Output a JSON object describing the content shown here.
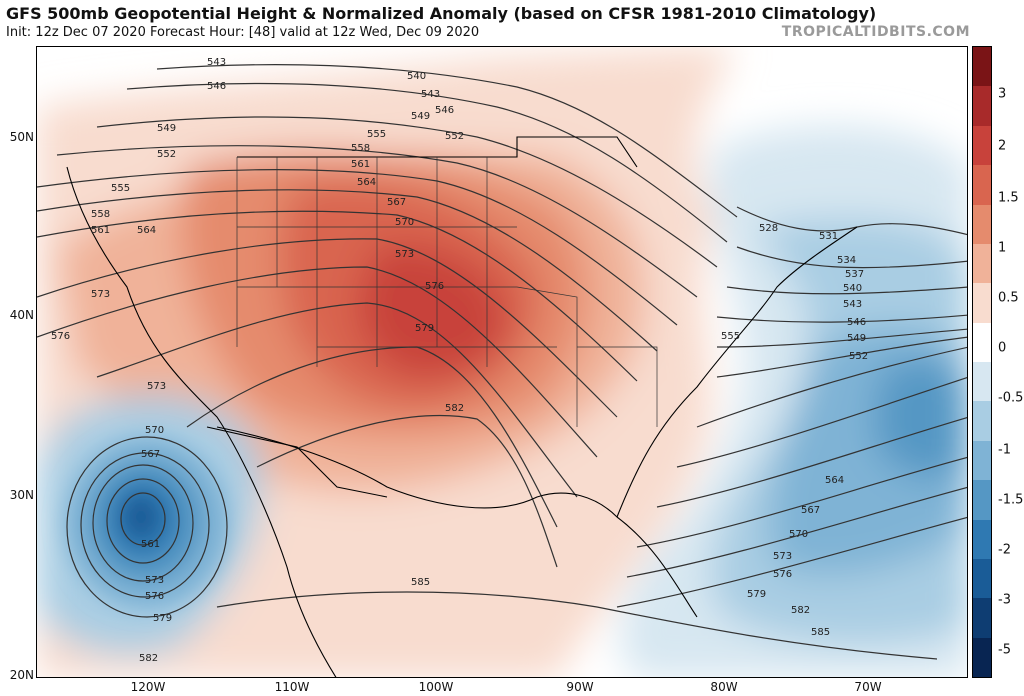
{
  "header": {
    "title": "GFS 500mb Geopotential Height & Normalized Anomaly (based on CFSR 1981-2010 Climatology)",
    "subtitle": "Init: 12z Dec 07 2020   Forecast Hour: [48]   valid at 12z Wed, Dec 09 2020",
    "brand": "TROPICALTIDBITS.COM"
  },
  "axes": {
    "lat_labels": [
      "50N",
      "40N",
      "30N",
      "20N"
    ],
    "lon_labels": [
      "120W",
      "110W",
      "100W",
      "90W",
      "80W",
      "70W"
    ]
  },
  "colorbar": {
    "ticks": [
      "3",
      "2",
      "1.5",
      "1",
      "0.5",
      "0",
      "-0.5",
      "-1",
      "-1.5",
      "-2",
      "-3",
      "-5"
    ],
    "colors": [
      "#7a1416",
      "#a82a2a",
      "#c8423b",
      "#d9654f",
      "#e58b6d",
      "#f0b299",
      "#f8dccf",
      "#ffffff",
      "#d7e7f1",
      "#a9cde3",
      "#7fb3d5",
      "#5597c4",
      "#2f79b2",
      "#1a5c97",
      "#0e3d72",
      "#082552"
    ]
  },
  "contours": {
    "labels": [
      "543",
      "546",
      "549",
      "552",
      "555",
      "558",
      "561",
      "564",
      "567",
      "570",
      "573",
      "576",
      "579",
      "582",
      "585",
      "540",
      "528",
      "531",
      "534",
      "537",
      "564",
      "567",
      "570",
      "573",
      "576",
      "579",
      "582",
      "585",
      "561",
      "567",
      "570",
      "573",
      "576",
      "579",
      "582",
      "540",
      "543",
      "546",
      "549",
      "552",
      "555",
      "558",
      "561",
      "564",
      "567",
      "570",
      "573",
      "576",
      "579",
      "582",
      "585"
    ]
  }
}
